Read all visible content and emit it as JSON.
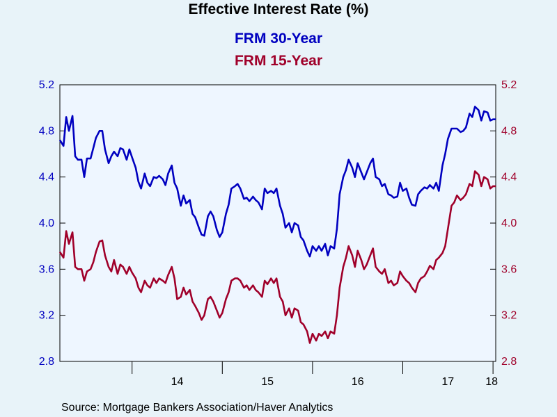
{
  "colors": {
    "frm30": "#0000c0",
    "frm15": "#a0002a"
  },
  "chart_data": {
    "type": "line",
    "title": "Effective Interest Rate (%)",
    "source": "Source:  Mortgage Bankers Association/Haver Analytics",
    "x_tick_labels": [
      "14",
      "15",
      "16",
      "17",
      "18"
    ],
    "y_ticks": [
      "2.8",
      "3.2",
      "3.6",
      "4.0",
      "4.4",
      "4.8",
      "5.2"
    ],
    "ylim": [
      2.8,
      5.2
    ],
    "xlim": [
      2013.2,
      2018.03
    ],
    "legend_position": "top-center",
    "series": [
      {
        "name": "FRM 30-Year",
        "color": "#0000c0",
        "x": [
          2013.2,
          2013.24,
          2013.27,
          2013.3,
          2013.34,
          2013.37,
          2013.4,
          2013.44,
          2013.47,
          2013.5,
          2013.54,
          2013.57,
          2013.6,
          2013.64,
          2013.67,
          2013.7,
          2013.74,
          2013.77,
          2013.8,
          2013.84,
          2013.87,
          2013.9,
          2013.94,
          2013.97,
          2014.0,
          2014.04,
          2014.07,
          2014.1,
          2014.14,
          2014.17,
          2014.2,
          2014.24,
          2014.27,
          2014.3,
          2014.34,
          2014.37,
          2014.4,
          2014.44,
          2014.47,
          2014.5,
          2014.54,
          2014.57,
          2014.6,
          2014.64,
          2014.67,
          2014.7,
          2014.74,
          2014.77,
          2014.8,
          2014.84,
          2014.87,
          2014.9,
          2014.94,
          2014.97,
          2015.0,
          2015.04,
          2015.07,
          2015.1,
          2015.14,
          2015.17,
          2015.2,
          2015.24,
          2015.27,
          2015.3,
          2015.34,
          2015.37,
          2015.4,
          2015.44,
          2015.47,
          2015.5,
          2015.54,
          2015.57,
          2015.6,
          2015.64,
          2015.67,
          2015.7,
          2015.74,
          2015.77,
          2015.8,
          2015.84,
          2015.87,
          2015.9,
          2015.94,
          2015.97,
          2016.0,
          2016.04,
          2016.07,
          2016.1,
          2016.14,
          2016.17,
          2016.2,
          2016.24,
          2016.27,
          2016.3,
          2016.34,
          2016.37,
          2016.4,
          2016.44,
          2016.47,
          2016.5,
          2016.54,
          2016.57,
          2016.6,
          2016.64,
          2016.67,
          2016.7,
          2016.74,
          2016.77,
          2016.8,
          2016.84,
          2016.87,
          2016.9,
          2016.94,
          2016.97,
          2017.0,
          2017.04,
          2017.07,
          2017.1,
          2017.14,
          2017.17,
          2017.2,
          2017.24,
          2017.27,
          2017.3,
          2017.34,
          2017.37,
          2017.4,
          2017.44,
          2017.47,
          2017.5,
          2017.54,
          2017.57,
          2017.6,
          2017.64,
          2017.67,
          2017.7,
          2017.74,
          2017.77,
          2017.8,
          2017.84,
          2017.87,
          2017.9,
          2017.94,
          2017.97,
          2018.0,
          2018.03
        ],
        "y": [
          4.72,
          4.67,
          4.92,
          4.8,
          4.93,
          4.58,
          4.55,
          4.55,
          4.4,
          4.56,
          4.56,
          4.65,
          4.74,
          4.8,
          4.8,
          4.64,
          4.52,
          4.58,
          4.62,
          4.58,
          4.65,
          4.64,
          4.55,
          4.64,
          4.57,
          4.48,
          4.36,
          4.3,
          4.43,
          4.35,
          4.32,
          4.4,
          4.39,
          4.41,
          4.38,
          4.33,
          4.43,
          4.5,
          4.35,
          4.3,
          4.15,
          4.24,
          4.17,
          4.2,
          4.08,
          4.05,
          3.96,
          3.9,
          3.89,
          4.06,
          4.1,
          4.06,
          3.94,
          3.88,
          3.92,
          4.08,
          4.16,
          4.3,
          4.32,
          4.34,
          4.3,
          4.21,
          4.22,
          4.19,
          4.23,
          4.2,
          4.18,
          4.12,
          4.3,
          4.26,
          4.28,
          4.26,
          4.3,
          4.15,
          4.08,
          3.96,
          4.0,
          3.92,
          4.0,
          3.98,
          3.88,
          3.85,
          3.76,
          3.71,
          3.8,
          3.76,
          3.8,
          3.76,
          3.82,
          3.72,
          3.8,
          3.78,
          3.95,
          4.25,
          4.4,
          4.46,
          4.55,
          4.48,
          4.4,
          4.52,
          4.44,
          4.38,
          4.44,
          4.52,
          4.56,
          4.4,
          4.38,
          4.32,
          4.34,
          4.25,
          4.24,
          4.22,
          4.23,
          4.35,
          4.28,
          4.3,
          4.22,
          4.16,
          4.15,
          4.25,
          4.28,
          4.31,
          4.3,
          4.33,
          4.3,
          4.35,
          4.28,
          4.5,
          4.6,
          4.73,
          4.82,
          4.82,
          4.82,
          4.79,
          4.8,
          4.83,
          4.95,
          4.92,
          5.01,
          4.98,
          4.89,
          4.97,
          4.96,
          4.89,
          4.9,
          4.9
        ]
      },
      {
        "name": "FRM 15-Year",
        "color": "#a0002a",
        "x": [
          2013.2,
          2013.24,
          2013.27,
          2013.3,
          2013.34,
          2013.37,
          2013.4,
          2013.44,
          2013.47,
          2013.5,
          2013.54,
          2013.57,
          2013.6,
          2013.64,
          2013.67,
          2013.7,
          2013.74,
          2013.77,
          2013.8,
          2013.84,
          2013.87,
          2013.9,
          2013.94,
          2013.97,
          2014.0,
          2014.04,
          2014.07,
          2014.1,
          2014.14,
          2014.17,
          2014.2,
          2014.24,
          2014.27,
          2014.3,
          2014.34,
          2014.37,
          2014.4,
          2014.44,
          2014.47,
          2014.5,
          2014.54,
          2014.57,
          2014.6,
          2014.64,
          2014.67,
          2014.7,
          2014.74,
          2014.77,
          2014.8,
          2014.84,
          2014.87,
          2014.9,
          2014.94,
          2014.97,
          2015.0,
          2015.04,
          2015.07,
          2015.1,
          2015.14,
          2015.17,
          2015.2,
          2015.24,
          2015.27,
          2015.3,
          2015.34,
          2015.37,
          2015.4,
          2015.44,
          2015.47,
          2015.5,
          2015.54,
          2015.57,
          2015.6,
          2015.64,
          2015.67,
          2015.7,
          2015.74,
          2015.77,
          2015.8,
          2015.84,
          2015.87,
          2015.9,
          2015.94,
          2015.97,
          2016.0,
          2016.04,
          2016.07,
          2016.1,
          2016.14,
          2016.17,
          2016.2,
          2016.24,
          2016.27,
          2016.3,
          2016.34,
          2016.37,
          2016.4,
          2016.44,
          2016.47,
          2016.5,
          2016.54,
          2016.57,
          2016.6,
          2016.64,
          2016.67,
          2016.7,
          2016.74,
          2016.77,
          2016.8,
          2016.84,
          2016.87,
          2016.9,
          2016.94,
          2016.97,
          2017.0,
          2017.04,
          2017.07,
          2017.1,
          2017.14,
          2017.17,
          2017.2,
          2017.24,
          2017.27,
          2017.3,
          2017.34,
          2017.37,
          2017.4,
          2017.44,
          2017.47,
          2017.5,
          2017.54,
          2017.57,
          2017.6,
          2017.64,
          2017.67,
          2017.7,
          2017.74,
          2017.77,
          2017.8,
          2017.84,
          2017.87,
          2017.9,
          2017.94,
          2017.97,
          2018.0,
          2018.03
        ],
        "y": [
          3.75,
          3.7,
          3.93,
          3.82,
          3.92,
          3.62,
          3.6,
          3.6,
          3.5,
          3.58,
          3.6,
          3.66,
          3.75,
          3.84,
          3.85,
          3.72,
          3.62,
          3.58,
          3.68,
          3.56,
          3.64,
          3.62,
          3.56,
          3.62,
          3.57,
          3.52,
          3.44,
          3.4,
          3.5,
          3.46,
          3.44,
          3.52,
          3.48,
          3.52,
          3.5,
          3.48,
          3.55,
          3.62,
          3.52,
          3.34,
          3.36,
          3.44,
          3.38,
          3.42,
          3.32,
          3.28,
          3.22,
          3.16,
          3.2,
          3.34,
          3.36,
          3.32,
          3.24,
          3.18,
          3.22,
          3.34,
          3.4,
          3.5,
          3.52,
          3.52,
          3.5,
          3.44,
          3.46,
          3.42,
          3.46,
          3.42,
          3.4,
          3.36,
          3.5,
          3.47,
          3.52,
          3.48,
          3.52,
          3.36,
          3.32,
          3.2,
          3.26,
          3.18,
          3.26,
          3.24,
          3.14,
          3.12,
          3.06,
          2.96,
          3.04,
          2.98,
          3.04,
          3.02,
          3.06,
          3.0,
          3.06,
          3.04,
          3.2,
          3.44,
          3.62,
          3.7,
          3.8,
          3.72,
          3.62,
          3.76,
          3.68,
          3.6,
          3.64,
          3.72,
          3.78,
          3.62,
          3.58,
          3.56,
          3.6,
          3.48,
          3.5,
          3.46,
          3.48,
          3.58,
          3.54,
          3.5,
          3.48,
          3.44,
          3.4,
          3.48,
          3.52,
          3.54,
          3.58,
          3.63,
          3.6,
          3.68,
          3.7,
          3.74,
          3.8,
          3.95,
          4.15,
          4.18,
          4.24,
          4.2,
          4.22,
          4.25,
          4.34,
          4.32,
          4.45,
          4.42,
          4.32,
          4.4,
          4.38,
          4.3,
          4.32,
          4.32
        ]
      }
    ]
  }
}
